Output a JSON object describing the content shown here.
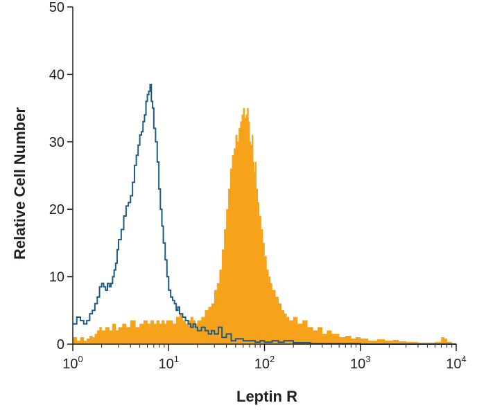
{
  "chart_data": {
    "type": "area",
    "xlabel": "Leptin R",
    "ylabel": "Relative Cell Number",
    "x_scale": "log",
    "xlim": [
      1,
      10000
    ],
    "ylim": [
      0,
      50
    ],
    "x_ticks": [
      {
        "value": 1,
        "base": "10",
        "exp": "0"
      },
      {
        "value": 10,
        "base": "10",
        "exp": "1"
      },
      {
        "value": 100,
        "base": "10",
        "exp": "2"
      },
      {
        "value": 1000,
        "base": "10",
        "exp": "3"
      },
      {
        "value": 10000,
        "base": "10",
        "exp": "4"
      }
    ],
    "y_ticks": [
      "0",
      "10",
      "20",
      "30",
      "40",
      "50"
    ],
    "grid": false,
    "legend": "none",
    "series": [
      {
        "style": "outline",
        "color": "#1f5a84",
        "points": [
          [
            1.0,
            3
          ],
          [
            1.1,
            4
          ],
          [
            1.2,
            3.5
          ],
          [
            1.3,
            3
          ],
          [
            1.4,
            3.5
          ],
          [
            1.5,
            4.5
          ],
          [
            1.6,
            5
          ],
          [
            1.7,
            6
          ],
          [
            1.8,
            7
          ],
          [
            1.9,
            8.5
          ],
          [
            2.0,
            9
          ],
          [
            2.1,
            8.5
          ],
          [
            2.2,
            8
          ],
          [
            2.3,
            9
          ],
          [
            2.4,
            8.5
          ],
          [
            2.5,
            9
          ],
          [
            2.6,
            10
          ],
          [
            2.7,
            11
          ],
          [
            2.8,
            12
          ],
          [
            2.9,
            14
          ],
          [
            3.0,
            15.5
          ],
          [
            3.2,
            17
          ],
          [
            3.4,
            19
          ],
          [
            3.6,
            20.5
          ],
          [
            3.8,
            21
          ],
          [
            4.0,
            22
          ],
          [
            4.2,
            24
          ],
          [
            4.4,
            26.5
          ],
          [
            4.6,
            28
          ],
          [
            4.8,
            29.5
          ],
          [
            5.0,
            31
          ],
          [
            5.2,
            31.5
          ],
          [
            5.4,
            33
          ],
          [
            5.6,
            34
          ],
          [
            5.8,
            36
          ],
          [
            6.0,
            37
          ],
          [
            6.2,
            37.5
          ],
          [
            6.4,
            38.5
          ],
          [
            6.6,
            36
          ],
          [
            6.8,
            35
          ],
          [
            7.0,
            32
          ],
          [
            7.3,
            30
          ],
          [
            7.6,
            27
          ],
          [
            7.9,
            23
          ],
          [
            8.2,
            20
          ],
          [
            8.5,
            17.5
          ],
          [
            8.8,
            15
          ],
          [
            9.2,
            12.5
          ],
          [
            9.6,
            10
          ],
          [
            10.0,
            8
          ],
          [
            10.5,
            7
          ],
          [
            11.0,
            6.5
          ],
          [
            11.5,
            6
          ],
          [
            12.0,
            5
          ],
          [
            12.5,
            5.5
          ],
          [
            13.0,
            4.5
          ],
          [
            14.0,
            4
          ],
          [
            15.0,
            3.5
          ],
          [
            16.0,
            3
          ],
          [
            17.0,
            2.5
          ],
          [
            18.0,
            3
          ],
          [
            19.0,
            2.5
          ],
          [
            20.0,
            2
          ],
          [
            22.0,
            2.5
          ],
          [
            24.0,
            2
          ],
          [
            26.0,
            1.5
          ],
          [
            28.0,
            2
          ],
          [
            30.0,
            1.5
          ],
          [
            33.0,
            2.5
          ],
          [
            36.0,
            1
          ],
          [
            40.0,
            1.5
          ],
          [
            45.0,
            0.5
          ],
          [
            50.0,
            0.8
          ],
          [
            60.0,
            0.5
          ],
          [
            70.0,
            0.5
          ],
          [
            80.0,
            0.3
          ],
          [
            90.0,
            0.5
          ],
          [
            100.0,
            0.3
          ],
          [
            120.0,
            0.5
          ],
          [
            140.0,
            0.3
          ],
          [
            160.0,
            0.5
          ],
          [
            180.0,
            0.5
          ],
          [
            200.0,
            0.2
          ],
          [
            300.0,
            0.1
          ],
          [
            1000.0,
            0
          ],
          [
            10000.0,
            0
          ]
        ]
      },
      {
        "style": "filled",
        "color": "#f7a21b",
        "points": [
          [
            1.0,
            1
          ],
          [
            1.1,
            0.5
          ],
          [
            1.2,
            1
          ],
          [
            1.3,
            0.5
          ],
          [
            1.4,
            0.8
          ],
          [
            1.5,
            1.2
          ],
          [
            1.6,
            1
          ],
          [
            1.7,
            1.5
          ],
          [
            1.8,
            2
          ],
          [
            1.9,
            2.5
          ],
          [
            2.0,
            2
          ],
          [
            2.2,
            2.5
          ],
          [
            2.4,
            2
          ],
          [
            2.6,
            3
          ],
          [
            2.8,
            2
          ],
          [
            3.0,
            2.5
          ],
          [
            3.3,
            3
          ],
          [
            3.6,
            2.5
          ],
          [
            4.0,
            3.5
          ],
          [
            4.5,
            2.5
          ],
          [
            5.0,
            3
          ],
          [
            5.5,
            3.5
          ],
          [
            6.0,
            3
          ],
          [
            6.5,
            3.5
          ],
          [
            7.0,
            3
          ],
          [
            7.5,
            3.5
          ],
          [
            8.0,
            3
          ],
          [
            8.5,
            3.5
          ],
          [
            9.0,
            3
          ],
          [
            9.5,
            3.5
          ],
          [
            10.0,
            3.5
          ],
          [
            11.0,
            3
          ],
          [
            12.0,
            4
          ],
          [
            13.0,
            4.5
          ],
          [
            14.0,
            3.5
          ],
          [
            15.0,
            3
          ],
          [
            16.0,
            3.5
          ],
          [
            17.0,
            4
          ],
          [
            18.0,
            3.5
          ],
          [
            19.0,
            3
          ],
          [
            20.0,
            3.5
          ],
          [
            22.0,
            4
          ],
          [
            24.0,
            5
          ],
          [
            26.0,
            5.5
          ],
          [
            28.0,
            6
          ],
          [
            30.0,
            8
          ],
          [
            32.0,
            9
          ],
          [
            34.0,
            11
          ],
          [
            36.0,
            14
          ],
          [
            38.0,
            17
          ],
          [
            40.0,
            20
          ],
          [
            42.0,
            23
          ],
          [
            44.0,
            26
          ],
          [
            46.0,
            28
          ],
          [
            48.0,
            29
          ],
          [
            50.0,
            31
          ],
          [
            52.0,
            30
          ],
          [
            54.0,
            32
          ],
          [
            56.0,
            33
          ],
          [
            58.0,
            34
          ],
          [
            60.0,
            35
          ],
          [
            62.0,
            33.5
          ],
          [
            64.0,
            34
          ],
          [
            66.0,
            35
          ],
          [
            68.0,
            33
          ],
          [
            70.0,
            30
          ],
          [
            72.0,
            29.5
          ],
          [
            74.0,
            31
          ],
          [
            76.0,
            27
          ],
          [
            78.0,
            25.5
          ],
          [
            80.0,
            27
          ],
          [
            82.0,
            23
          ],
          [
            85.0,
            21
          ],
          [
            88.0,
            19
          ],
          [
            92.0,
            17
          ],
          [
            96.0,
            15
          ],
          [
            100.0,
            13
          ],
          [
            105.0,
            11
          ],
          [
            110.0,
            10
          ],
          [
            115.0,
            9
          ],
          [
            120.0,
            8
          ],
          [
            130.0,
            7
          ],
          [
            140.0,
            6
          ],
          [
            150.0,
            5
          ],
          [
            160.0,
            4.5
          ],
          [
            170.0,
            4
          ],
          [
            180.0,
            3.5
          ],
          [
            200.0,
            4
          ],
          [
            220.0,
            3
          ],
          [
            250.0,
            3.5
          ],
          [
            280.0,
            2.5
          ],
          [
            320.0,
            2
          ],
          [
            360.0,
            2.5
          ],
          [
            400.0,
            1.5
          ],
          [
            450.0,
            2
          ],
          [
            500.0,
            1.5
          ],
          [
            600.0,
            1
          ],
          [
            700.0,
            1.2
          ],
          [
            800.0,
            0.8
          ],
          [
            900.0,
            1
          ],
          [
            1000.0,
            0.8
          ],
          [
            1200.0,
            0.5
          ],
          [
            1500.0,
            0.7
          ],
          [
            1800.0,
            0.5
          ],
          [
            2200.0,
            0.6
          ],
          [
            2500.0,
            0.4
          ],
          [
            3000.0,
            0.3
          ],
          [
            4000.0,
            0.2
          ],
          [
            5000.0,
            0.2
          ],
          [
            6000.0,
            0.3
          ],
          [
            7000.0,
            1
          ],
          [
            7500.0,
            0.8
          ],
          [
            8000.0,
            0.3
          ],
          [
            9000.0,
            0.1
          ],
          [
            10000.0,
            0
          ]
        ]
      }
    ]
  }
}
